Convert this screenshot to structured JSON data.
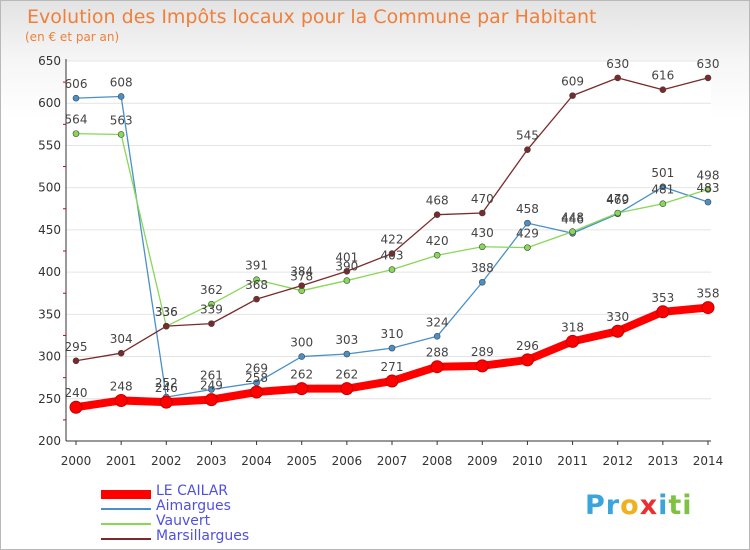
{
  "title": "Evolution des Impôts locaux pour la Commune par Habitant",
  "subtitle": "(en € et par an)",
  "brand": {
    "letters": [
      "P",
      "r",
      "o",
      "x",
      "i",
      "t",
      "i"
    ],
    "colors": [
      "#3aa4dc",
      "#3aa4dc",
      "#f0b020",
      "#e83030",
      "#3aa4dc",
      "#7fc241",
      "#7fc241"
    ]
  },
  "chart_data": {
    "type": "line",
    "title": "Evolution des Impôts locaux pour la Commune par Habitant",
    "subtitle": "(en € et par an)",
    "x": [
      "2000",
      "2001",
      "2002",
      "2003",
      "2004",
      "2005",
      "2006",
      "2007",
      "2008",
      "2009",
      "2010",
      "2011",
      "2012",
      "2013",
      "2014"
    ],
    "ylim": [
      200,
      650
    ],
    "yticks": [
      "200",
      "250",
      "300",
      "350",
      "400",
      "450",
      "500",
      "550",
      "600",
      "650"
    ],
    "grid": "horizontal",
    "legend_position": "bottom-left",
    "series": [
      {
        "name": "LE CAILAR",
        "color": "#ff0000",
        "values": [
          240,
          248,
          246,
          249,
          258,
          262,
          262,
          271,
          288,
          289,
          296,
          318,
          330,
          353,
          358
        ],
        "labels": [
          "240",
          "248",
          "246",
          "249",
          "258",
          "262",
          "262",
          "271",
          "288",
          "289",
          "296",
          "318",
          "330",
          "353",
          "358"
        ],
        "bold": true
      },
      {
        "name": "Aimargues",
        "color": "#4a90c8",
        "values": [
          606,
          608,
          252,
          261,
          269,
          300,
          303,
          310,
          324,
          388,
          458,
          446,
          469,
          501,
          483
        ],
        "labels": [
          "606",
          "608",
          "252",
          "261",
          "269",
          "300",
          "303",
          "310",
          "324",
          "388",
          "458",
          "446",
          "469",
          "501",
          "483"
        ]
      },
      {
        "name": "Vauvert",
        "color": "#86d856",
        "values": [
          564,
          563,
          336,
          362,
          391,
          378,
          390,
          403,
          420,
          430,
          429,
          448,
          470,
          481,
          498
        ],
        "labels": [
          "564",
          "563",
          "336",
          "362",
          "391",
          "378",
          "390",
          "403",
          "420",
          "430",
          "429",
          "448",
          "470",
          "481",
          "498"
        ]
      },
      {
        "name": "Marsillargues",
        "color": "#7a2a2a",
        "values": [
          295,
          304,
          336,
          339,
          368,
          384,
          401,
          422,
          468,
          470,
          545,
          609,
          630,
          616,
          630
        ],
        "labels": [
          "295",
          "304",
          "336",
          "339",
          "368",
          "384",
          "401",
          "422",
          "468",
          "470",
          "545",
          "609",
          "630",
          "616",
          "630"
        ]
      }
    ]
  }
}
